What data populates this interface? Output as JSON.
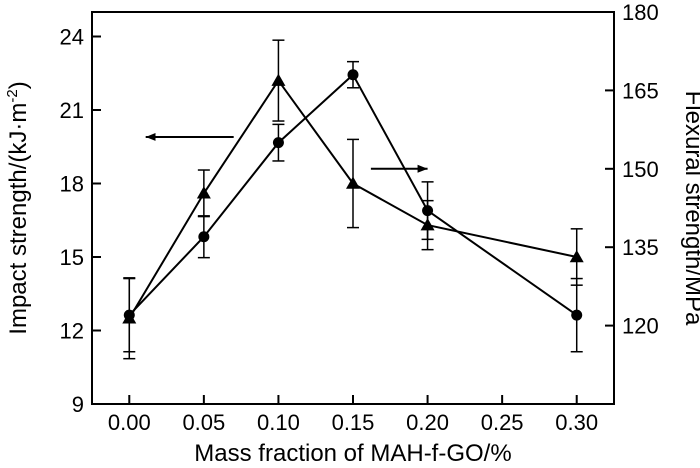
{
  "chart_data": {
    "type": "line",
    "xlabel": "Mass fraction of MAH-f-GO/%",
    "ylabel_left": "Impact strength/(kJ·m",
    "ylabel_left_exp": "-2",
    "ylabel_left_close": ")",
    "ylabel_right": "Flexural strength/MPa",
    "xlim": [
      -0.025,
      0.325
    ],
    "ylim_left": [
      9,
      25
    ],
    "ylim_right": [
      105,
      180
    ],
    "x_ticks": [
      0.0,
      0.05,
      0.1,
      0.15,
      0.2,
      0.25,
      0.3
    ],
    "x_tick_labels": [
      "0.00",
      "0.05",
      "0.10",
      "0.15",
      "0.20",
      "0.25",
      "0.30"
    ],
    "y_left_ticks": [
      9,
      12,
      15,
      18,
      21,
      24
    ],
    "y_left_tick_labels": [
      "9",
      "12",
      "15",
      "18",
      "21",
      "24"
    ],
    "y_right_ticks": [
      120,
      135,
      150,
      165,
      180
    ],
    "y_right_tick_labels": [
      "120",
      "135",
      "150",
      "165",
      "180"
    ],
    "series": [
      {
        "axis": "left",
        "marker": "triangle",
        "x": [
          0.0,
          0.05,
          0.1,
          0.15,
          0.2,
          0.3
        ],
        "y": [
          12.5,
          17.6,
          22.2,
          18.0,
          16.3,
          15.0
        ],
        "err": [
          1.65,
          0.95,
          1.65,
          1.8,
          1.0,
          1.15
        ]
      },
      {
        "axis": "right",
        "marker": "circle",
        "x": [
          0.0,
          0.05,
          0.1,
          0.15,
          0.2,
          0.3
        ],
        "y": [
          122,
          137,
          155,
          168,
          142,
          122
        ],
        "err": [
          7,
          4,
          3.5,
          2.5,
          5.5,
          7
        ]
      }
    ],
    "annotations": [
      {
        "type": "arrow",
        "direction": "left",
        "refers_to": "left"
      },
      {
        "type": "arrow",
        "direction": "right",
        "refers_to": "right"
      }
    ],
    "grid": false,
    "legend": "none"
  }
}
